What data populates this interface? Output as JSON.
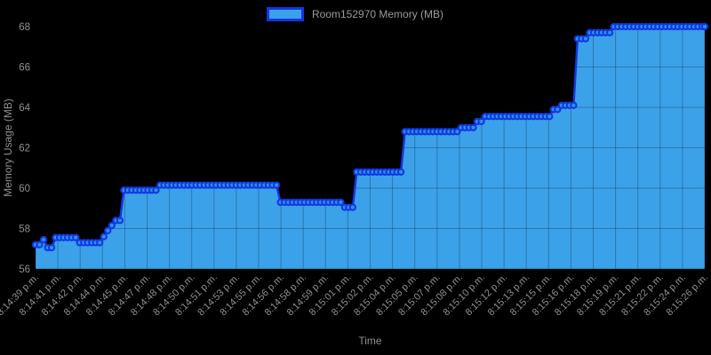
{
  "app": {
    "background": "#000000"
  },
  "legend": {
    "label": "Room152970 Memory (MB)"
  },
  "chart_data": {
    "type": "area",
    "title": "",
    "xlabel": "Time",
    "ylabel": "Memory Usage (MB)",
    "ylim": [
      56,
      68
    ],
    "y_ticks": [
      56,
      58,
      60,
      62,
      64,
      66,
      68
    ],
    "x_tick_labels": [
      "8:14:39 p.m.",
      "8:14:41 p.m.",
      "8:14:42 p.m.",
      "8:14:44 p.m.",
      "8:14:45 p.m.",
      "8:14:47 p.m.",
      "8:14:48 p.m.",
      "8:14:50 p.m.",
      "8:14:51 p.m.",
      "8:14:53 p.m.",
      "8:14:55 p.m.",
      "8:14:56 p.m.",
      "8:14:58 p.m.",
      "8:14:59 p.m.",
      "8:15:01 p.m.",
      "8:15:02 p.m.",
      "8:15:04 p.m.",
      "8:15:05 p.m.",
      "8:15:07 p.m.",
      "8:15:08 p.m.",
      "8:15:10 p.m.",
      "8:15:12 p.m.",
      "8:15:13 p.m.",
      "8:15:15 p.m.",
      "8:15:16 p.m.",
      "8:15:18 p.m.",
      "8:15:19 p.m.",
      "8:15:21 p.m.",
      "8:15:22 p.m.",
      "8:15:24 p.m.",
      "8:15:26 p.m."
    ],
    "legend_entries": [
      "Room152970 Memory (MB)"
    ],
    "legend_position": "top",
    "grid": true,
    "series": [
      {
        "name": "Room152970 Memory (MB)",
        "unit": "MB",
        "point_spacing_frac": 0.006,
        "x_domain": "fraction of plot width, 0 = 8:14:39 p.m., 1 = 8:15:26 p.m.",
        "step_segments": [
          [
            0.0,
            0.011,
            57.2
          ],
          [
            0.011,
            0.017,
            57.45
          ],
          [
            0.017,
            0.029,
            57.05
          ],
          [
            0.029,
            0.064,
            57.55
          ],
          [
            0.064,
            0.098,
            57.3
          ],
          [
            0.098,
            0.104,
            57.6
          ],
          [
            0.104,
            0.112,
            57.9
          ],
          [
            0.112,
            0.12,
            58.15
          ],
          [
            0.12,
            0.128,
            58.4
          ],
          [
            0.128,
            0.184,
            59.9
          ],
          [
            0.184,
            0.366,
            60.15
          ],
          [
            0.366,
            0.459,
            59.3
          ],
          [
            0.459,
            0.479,
            59.05
          ],
          [
            0.479,
            0.548,
            60.8
          ],
          [
            0.548,
            0.635,
            62.8
          ],
          [
            0.635,
            0.656,
            63.0
          ],
          [
            0.656,
            0.672,
            63.3
          ],
          [
            0.672,
            0.773,
            63.55
          ],
          [
            0.773,
            0.786,
            63.9
          ],
          [
            0.786,
            0.805,
            64.1
          ],
          [
            0.805,
            0.823,
            67.4
          ],
          [
            0.823,
            0.862,
            67.7
          ],
          [
            0.862,
            1.0,
            68.0
          ]
        ]
      }
    ],
    "colors": {
      "background": "#000000",
      "line": "#1535E0",
      "marker_fill": "#2196F3",
      "area_fill": "#3BA1E9",
      "grid_overlay": "rgba(0,0,0,0.25)",
      "tick_text": "#8f8f8f",
      "axis_title_text": "#8f8f8f"
    }
  }
}
